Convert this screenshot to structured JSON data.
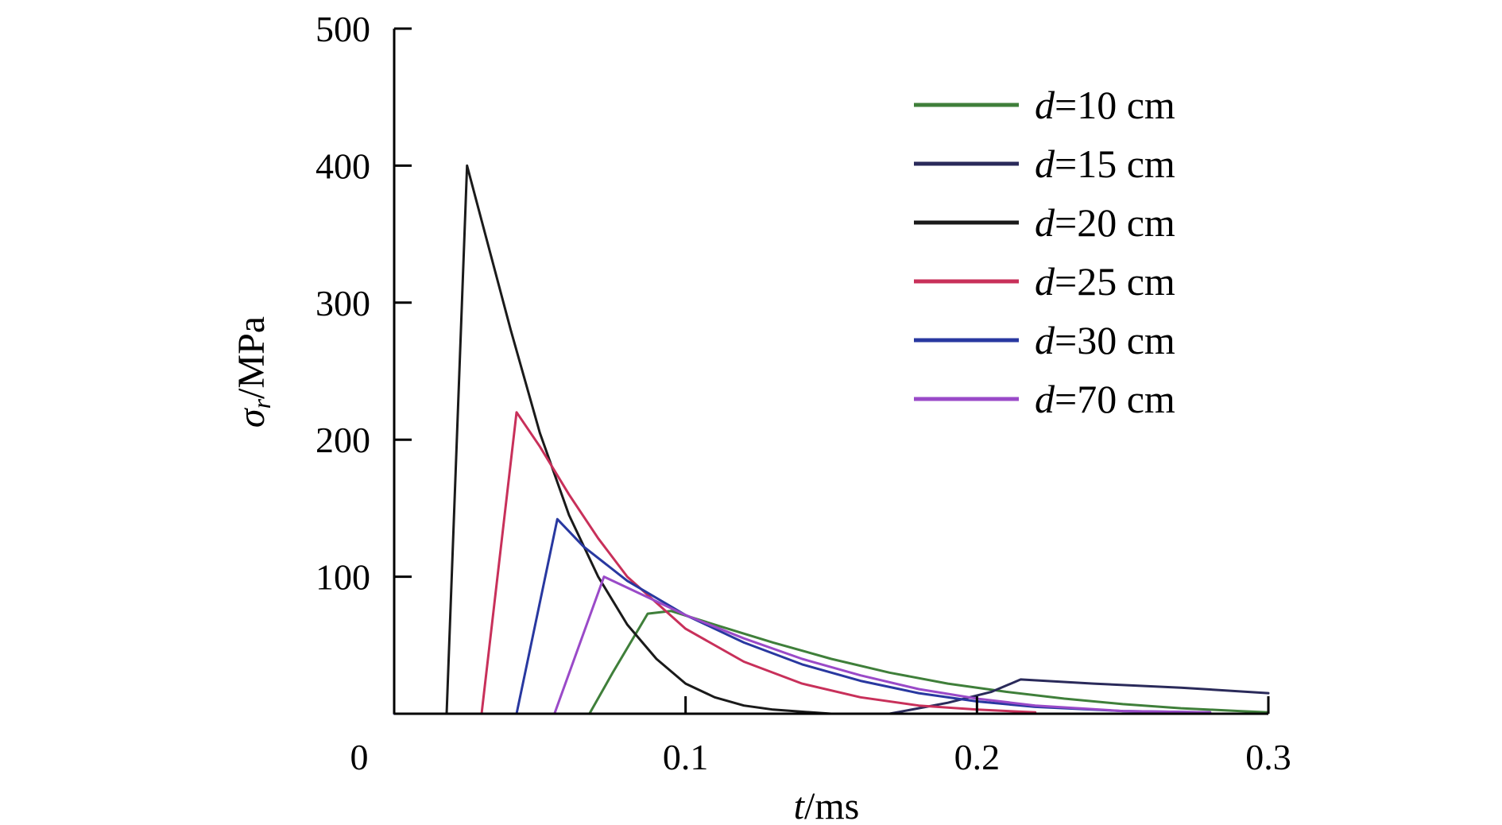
{
  "chart_data": {
    "type": "line",
    "title": "",
    "xlabel_var": "t",
    "xlabel_unit": "/ms",
    "ylabel_var": "σ",
    "ylabel_sub": "r",
    "ylabel_unit": "/MPa",
    "xlim": [
      0,
      0.3
    ],
    "ylim": [
      0,
      500
    ],
    "x_ticks": [
      {
        "value": 0,
        "label": "0"
      },
      {
        "value": 0.1,
        "label": "0.1"
      },
      {
        "value": 0.2,
        "label": "0.2"
      },
      {
        "value": 0.3,
        "label": "0.3"
      }
    ],
    "y_ticks": [
      {
        "value": 100,
        "label": "100"
      },
      {
        "value": 200,
        "label": "200"
      },
      {
        "value": 300,
        "label": "300"
      },
      {
        "value": 400,
        "label": "400"
      },
      {
        "value": 500,
        "label": "500"
      }
    ],
    "grid": false,
    "legend_position": "top-right",
    "series": [
      {
        "name": "=10 cm",
        "name_var": "d",
        "color": "#3f7f3a",
        "x": [
          0.067,
          0.075,
          0.087,
          0.095,
          0.11,
          0.13,
          0.15,
          0.17,
          0.19,
          0.21,
          0.23,
          0.25,
          0.27,
          0.29,
          0.3
        ],
        "y": [
          0,
          30,
          73,
          75,
          65,
          52,
          40,
          30,
          22,
          16,
          11,
          7,
          4,
          2,
          1
        ]
      },
      {
        "name": "=15 cm",
        "name_var": "d",
        "color": "#2a2a5a",
        "x": [
          0,
          0.17,
          0.19,
          0.205,
          0.215,
          0.24,
          0.27,
          0.3
        ],
        "y": [
          0,
          0,
          8,
          16,
          25,
          22,
          19,
          15
        ]
      },
      {
        "name": "=20 cm",
        "name_var": "d",
        "color": "#1a1a1a",
        "x": [
          0.018,
          0.025,
          0.03,
          0.04,
          0.05,
          0.06,
          0.07,
          0.08,
          0.09,
          0.1,
          0.11,
          0.12,
          0.13,
          0.15
        ],
        "y": [
          0,
          400,
          360,
          280,
          205,
          145,
          100,
          65,
          40,
          22,
          12,
          6,
          3,
          0
        ]
      },
      {
        "name": "=25 cm",
        "name_var": "d",
        "color": "#c8305a",
        "x": [
          0.03,
          0.042,
          0.05,
          0.06,
          0.07,
          0.08,
          0.1,
          0.12,
          0.14,
          0.16,
          0.18,
          0.2,
          0.22
        ],
        "y": [
          0,
          220,
          195,
          160,
          128,
          100,
          62,
          38,
          22,
          12,
          6,
          3,
          1
        ]
      },
      {
        "name": "=30 cm",
        "name_var": "d",
        "color": "#2838a0",
        "x": [
          0.042,
          0.056,
          0.065,
          0.08,
          0.1,
          0.12,
          0.14,
          0.16,
          0.18,
          0.2,
          0.22,
          0.25,
          0.28
        ],
        "y": [
          0,
          142,
          122,
          97,
          72,
          52,
          36,
          24,
          15,
          9,
          5,
          2,
          1
        ]
      },
      {
        "name": "=70 cm",
        "name_var": "d",
        "color": "#9a4ac8",
        "x": [
          0.055,
          0.072,
          0.08,
          0.09,
          0.1,
          0.12,
          0.14,
          0.16,
          0.18,
          0.2,
          0.22,
          0.25,
          0.28
        ],
        "y": [
          0,
          100,
          92,
          82,
          72,
          55,
          40,
          28,
          18,
          11,
          6,
          2,
          1
        ]
      }
    ]
  }
}
